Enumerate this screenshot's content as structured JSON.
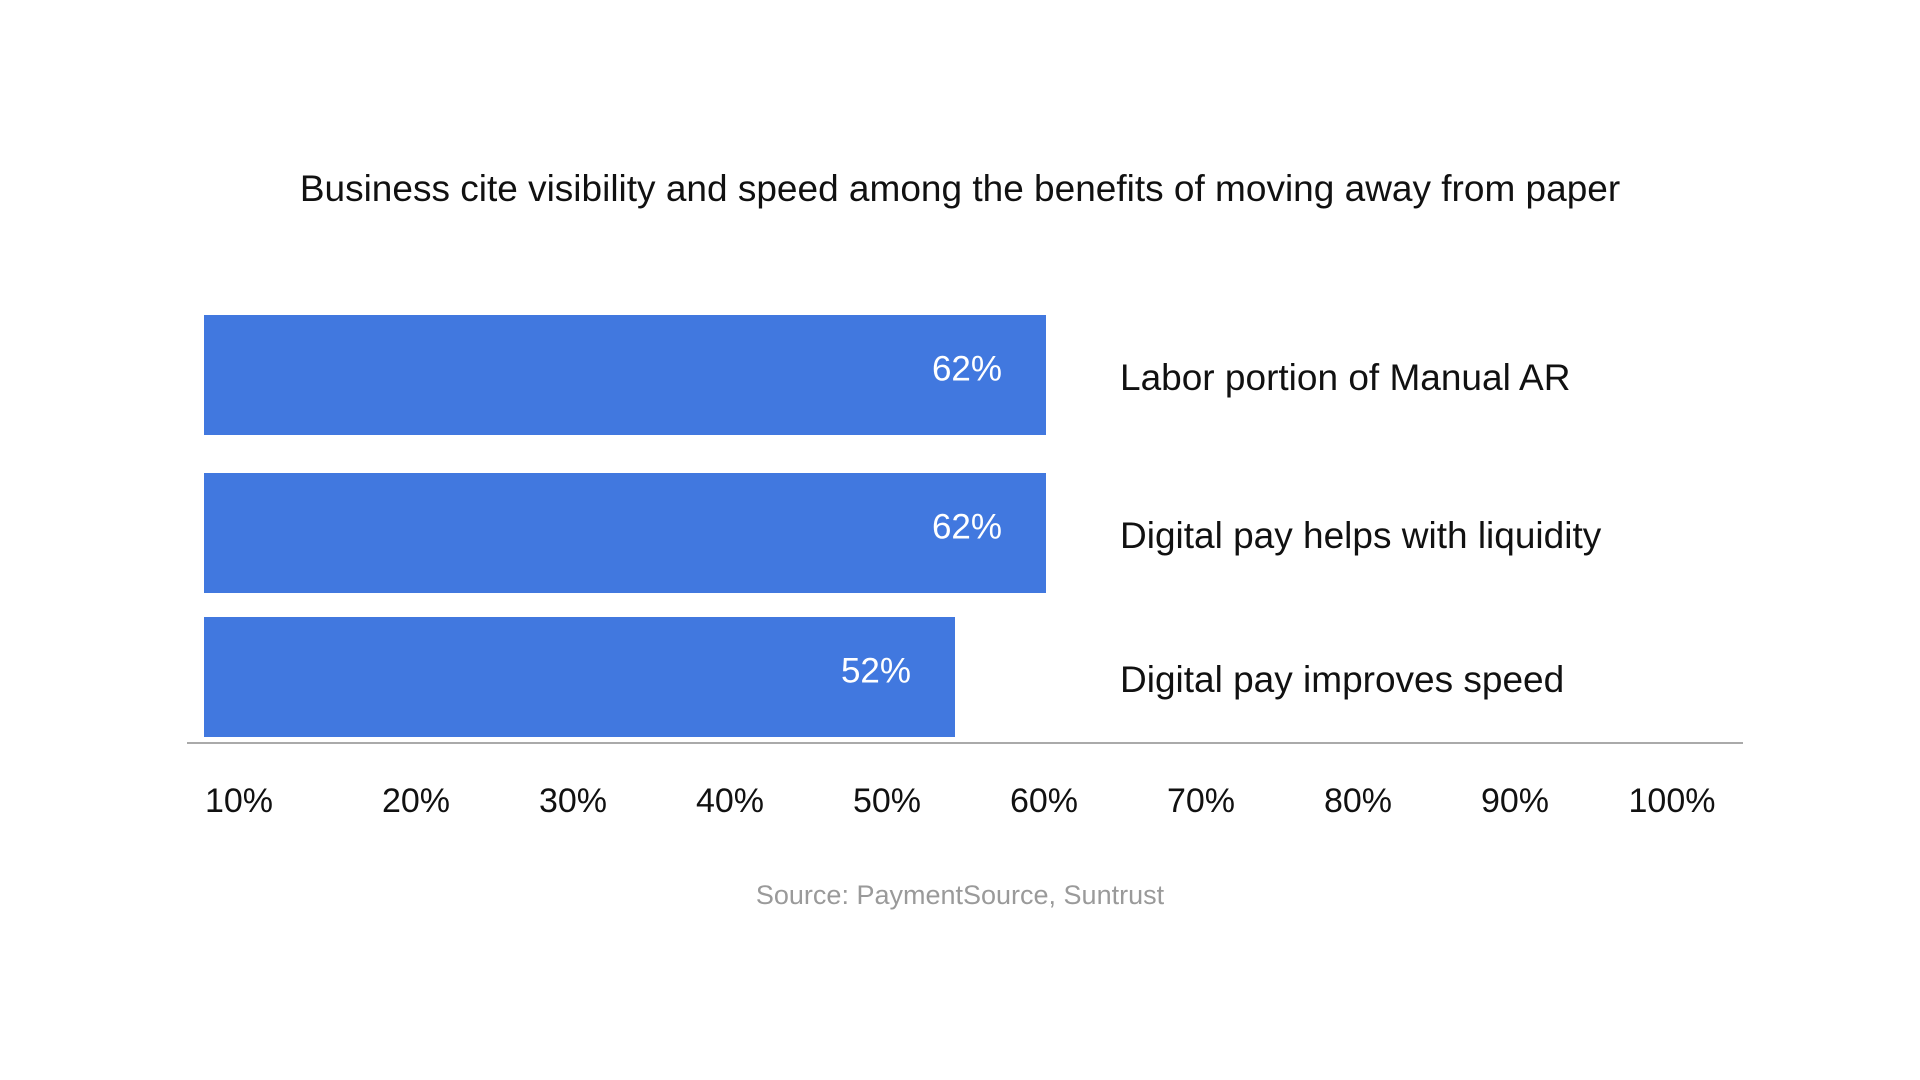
{
  "chart_data": {
    "type": "bar",
    "orientation": "horizontal",
    "title": "Business cite visibility and speed among the benefits of moving away from paper",
    "categories": [
      "Labor portion of Manual AR",
      "Digital pay helps with liquidity",
      "Digital pay improves speed"
    ],
    "values": [
      62,
      62,
      52
    ],
    "data_labels": [
      "62%",
      "62%",
      "52%"
    ],
    "x_ticks": [
      "10%",
      "20%",
      "30%",
      "40%",
      "50%",
      "60%",
      "70%",
      "80%",
      "90%",
      "100%"
    ],
    "xlim": [
      10,
      100
    ],
    "unit": "%",
    "grid": false,
    "bar_color": "#4178DF",
    "source": "Source: PaymentSource, Suntrust"
  }
}
